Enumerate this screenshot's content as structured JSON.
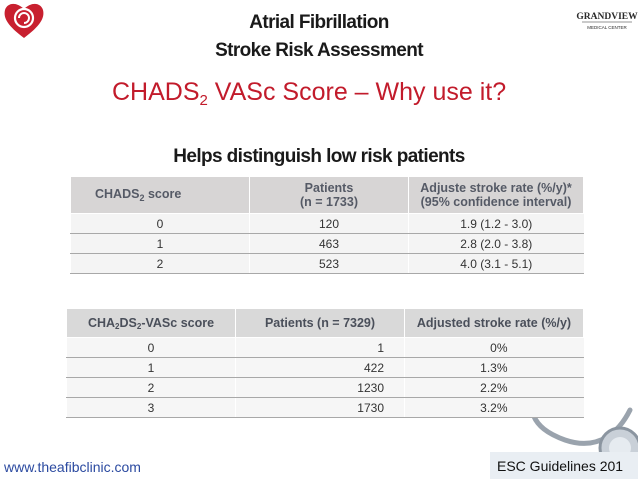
{
  "header": {
    "title_line1": "Atrial Fibrillation",
    "title_line2": "Stroke Risk Assessment",
    "subtitle_main": "CHADS",
    "subtitle_sub": "2",
    "subtitle_rest": " VASc Score – Why use it?",
    "right_logo_name": "GRANDVIEW",
    "right_logo_tag": "MEDICAL CENTER"
  },
  "section_heading": "Helps distinguish low risk patients",
  "table1": {
    "headers": {
      "col1_main": "CHADS",
      "col1_sub": "2",
      "col1_rest": " score",
      "col2_line1": "Patients",
      "col2_line2": "(n = 1733)",
      "col3_line1": "Adjuste stroke rate (%/y)*",
      "col3_line2": "(95% confidence interval)"
    },
    "rows": [
      {
        "score": "0",
        "patients": "120",
        "rate": "1.9 (1.2 - 3.0)"
      },
      {
        "score": "1",
        "patients": "463",
        "rate": "2.8 (2.0 - 3.8)"
      },
      {
        "score": "2",
        "patients": "523",
        "rate": "4.0 (3.1 - 5.1)"
      }
    ]
  },
  "table2": {
    "headers": {
      "col1_a": "CHA",
      "col1_sub1": "2",
      "col1_b": "DS",
      "col1_sub2": "2",
      "col1_c": "-VASc score",
      "col2": "Patients (n = 7329)",
      "col3": "Adjusted stroke rate (%/y)"
    },
    "rows": [
      {
        "score": "0",
        "patients": "1",
        "rate": "0%"
      },
      {
        "score": "1",
        "patients": "422",
        "rate": "1.3%"
      },
      {
        "score": "2",
        "patients": "1230",
        "rate": "2.2%"
      },
      {
        "score": "3",
        "patients": "1730",
        "rate": "3.2%"
      }
    ]
  },
  "footer": {
    "website": "www.theafibclinic.com",
    "source": "ESC Guidelines 201"
  },
  "colors": {
    "accent_red": "#c21b2b",
    "link_blue": "#2b4aa0",
    "header_gray": "#d7d5d5"
  }
}
